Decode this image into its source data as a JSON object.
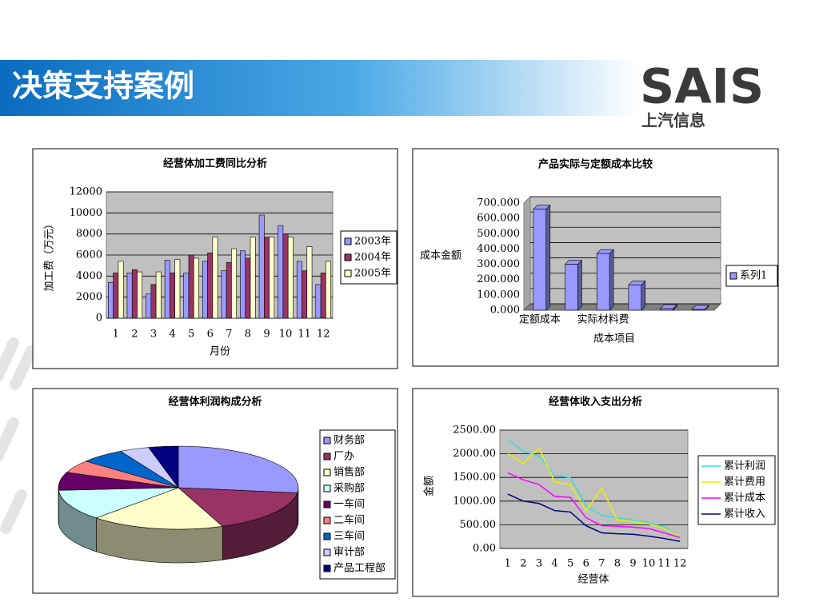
{
  "header": {
    "title": "决策支持案例",
    "logo": "SAIS",
    "logo_sub": "上汽信息"
  },
  "chart_data": [
    {
      "type": "bar",
      "title": "经营体加工费同比分析",
      "y_label": "加工费（万元）",
      "x_label": "月份",
      "categories": [
        "1",
        "2",
        "3",
        "4",
        "5",
        "6",
        "7",
        "8",
        "9",
        "10",
        "11",
        "12"
      ],
      "series": [
        {
          "name": "2003年",
          "color": "#9999ff",
          "values": [
            3400,
            4300,
            2300,
            5500,
            4300,
            5400,
            4500,
            6400,
            9800,
            8800,
            5400,
            3200
          ]
        },
        {
          "name": "2004年",
          "color": "#993366",
          "values": [
            4300,
            4600,
            3200,
            4300,
            6000,
            6200,
            5300,
            5700,
            7700,
            8000,
            4500,
            4300
          ]
        },
        {
          "name": "2005年",
          "color": "#ffffcc",
          "values": [
            5400,
            4400,
            4400,
            5600,
            5700,
            7700,
            6600,
            7700,
            7700,
            7700,
            6800,
            5400
          ]
        }
      ],
      "ylim": [
        0,
        12000
      ],
      "yticks": [
        0,
        2000,
        4000,
        6000,
        8000,
        10000,
        12000
      ],
      "grid": true
    },
    {
      "type": "bar",
      "three_d": true,
      "title": "产品实际与定额成本比较",
      "y_label": "成本金额",
      "x_label": "成本项目",
      "categories": [
        "定额成本",
        null,
        "实际材料费",
        null,
        null,
        null
      ],
      "series": [
        {
          "name": "系列1",
          "color": "#9999ff",
          "values": [
            660,
            300,
            370,
            165,
            10,
            5
          ]
        }
      ],
      "ylim": [
        0,
        700
      ],
      "yticks": [
        {
          "value": 0,
          "label": "0.000"
        },
        {
          "value": 100,
          "label": "100.000"
        },
        {
          "value": 200,
          "label": "200.000"
        },
        {
          "value": 300,
          "label": "300.000"
        },
        {
          "value": 400,
          "label": "400.000"
        },
        {
          "value": 500,
          "label": "500.000"
        },
        {
          "value": 600,
          "label": "600.000"
        },
        {
          "value": 700,
          "label": "700.000"
        }
      ],
      "grid": true
    },
    {
      "type": "pie",
      "three_d": true,
      "title": "经营体利润构成分析",
      "categories": [
        "财务部",
        "厂办",
        "销售部",
        "采购部",
        "一车间",
        "二车间",
        "三车间",
        "审计部",
        "产品工程部"
      ],
      "values": [
        27,
        17,
        18,
        12,
        7,
        5,
        6,
        4,
        4
      ],
      "colors": [
        "#9999ff",
        "#993366",
        "#ffffcc",
        "#ccffff",
        "#660066",
        "#ff8080",
        "#0066cc",
        "#ccccff",
        "#000080"
      ]
    },
    {
      "type": "line",
      "title": "经营体收入支出分析",
      "y_label": "金额",
      "x_label": "经营体",
      "categories": [
        "1",
        "2",
        "3",
        "4",
        "5",
        "6",
        "7",
        "8",
        "9",
        "10",
        "11",
        "12"
      ],
      "series": [
        {
          "name": "累计利润",
          "color": "#33dddd",
          "values": [
            2300,
            2050,
            1950,
            1550,
            1500,
            900,
            700,
            650,
            600,
            550,
            450,
            250
          ]
        },
        {
          "name": "累计费用",
          "color": "#eeee00",
          "values": [
            2000,
            1800,
            2120,
            1400,
            1350,
            800,
            1270,
            600,
            570,
            520,
            420,
            250
          ]
        },
        {
          "name": "累计成本",
          "color": "#ff00ff",
          "values": [
            1600,
            1450,
            1350,
            1100,
            1080,
            650,
            480,
            470,
            450,
            420,
            330,
            230
          ]
        },
        {
          "name": "累计收入",
          "color": "#000080",
          "values": [
            1150,
            1000,
            950,
            800,
            770,
            480,
            330,
            310,
            300,
            260,
            210,
            150
          ]
        }
      ],
      "ylim": [
        0,
        2500
      ],
      "yticks": [
        {
          "value": 0,
          "label": "0.00"
        },
        {
          "value": 500,
          "label": "500.00"
        },
        {
          "value": 1000,
          "label": "1000.00"
        },
        {
          "value": 1500,
          "label": "1500.00"
        },
        {
          "value": 2000,
          "label": "2000.00"
        },
        {
          "value": 2500,
          "label": "2500.00"
        }
      ],
      "grid": true
    }
  ]
}
